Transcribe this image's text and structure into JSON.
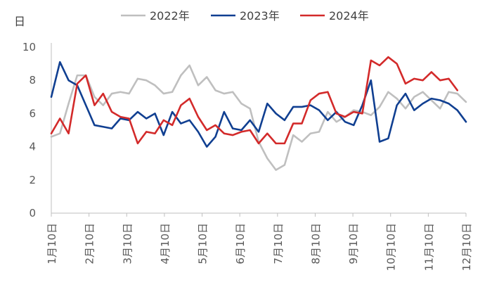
{
  "chart_data": {
    "type": "line",
    "title": "",
    "ylabel": "日",
    "xlabel": "",
    "ylim": [
      0,
      10
    ],
    "yticks": [
      0,
      2,
      4,
      6,
      8,
      10
    ],
    "grid": false,
    "legend_position": "top",
    "x_tick_labels": [
      "1月10日",
      "2月10日",
      "3月10日",
      "4月10日",
      "5月10日",
      "6月10日",
      "7月10日",
      "8月10日",
      "9月10日",
      "10月10日",
      "11月10日",
      "12月10日"
    ],
    "series": [
      {
        "name": "2022年",
        "color": "#BFBFBF",
        "values": [
          4.6,
          4.8,
          6.6,
          8.3,
          8.3,
          7.0,
          6.5,
          7.2,
          7.3,
          7.2,
          8.1,
          8.0,
          7.7,
          7.2,
          7.3,
          8.3,
          8.9,
          7.7,
          8.2,
          7.4,
          7.2,
          7.3,
          6.6,
          6.3,
          4.3,
          3.3,
          2.6,
          2.9,
          4.7,
          4.3,
          4.8,
          4.9,
          6.1,
          5.5,
          5.8,
          6.2,
          6.1,
          5.9,
          6.4,
          7.3,
          6.9,
          6.3,
          7.0,
          7.3,
          6.8,
          6.3,
          7.3,
          7.2,
          6.7
        ]
      },
      {
        "name": "2023年",
        "color": "#103F91",
        "values": [
          7.0,
          9.1,
          8.0,
          7.7,
          6.5,
          5.3,
          5.2,
          5.1,
          5.7,
          5.6,
          6.1,
          5.7,
          6.0,
          4.7,
          6.1,
          5.4,
          5.6,
          4.9,
          4.0,
          4.6,
          6.1,
          5.1,
          5.0,
          5.6,
          4.9,
          6.6,
          6.0,
          5.6,
          6.4,
          6.4,
          6.5,
          6.2,
          5.6,
          6.1,
          5.5,
          5.3,
          6.5,
          8.0,
          4.3,
          4.5,
          6.5,
          7.2,
          6.2,
          6.6,
          6.9,
          6.8,
          6.6,
          6.2,
          5.5
        ]
      },
      {
        "name": "2024年",
        "color": "#D32A2A",
        "values": [
          4.8,
          5.7,
          4.8,
          7.8,
          8.3,
          6.5,
          7.2,
          6.1,
          5.8,
          5.7,
          4.2,
          4.9,
          4.8,
          5.6,
          5.3,
          6.5,
          6.9,
          5.8,
          5.0,
          5.3,
          4.8,
          4.7,
          4.9,
          5.0,
          4.2,
          4.8,
          4.2,
          4.2,
          5.4,
          5.4,
          6.8,
          7.2,
          7.3,
          6.0,
          5.8,
          6.1,
          6.0,
          9.2,
          8.9,
          9.4,
          9.0,
          7.8,
          8.1,
          8.0,
          8.5,
          8.0,
          8.1,
          7.4
        ]
      }
    ]
  }
}
